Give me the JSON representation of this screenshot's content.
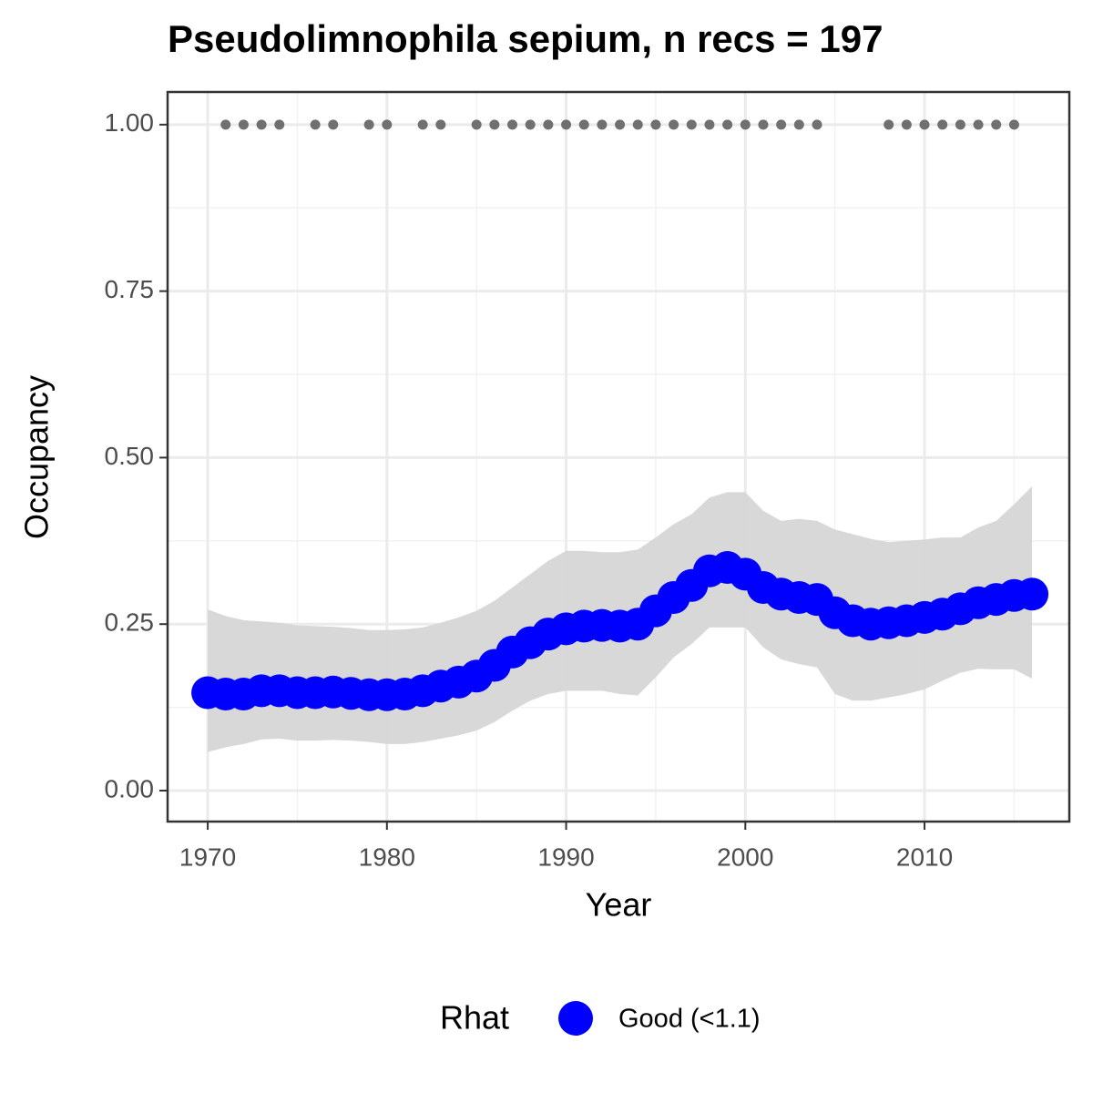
{
  "chart_data": {
    "type": "line",
    "title": "Pseudolimnophila sepium, n recs = 197",
    "x_label": "Year",
    "y_label": "Occupancy",
    "legend_title": "Rhat",
    "x": [
      1970,
      1971,
      1972,
      1973,
      1974,
      1975,
      1976,
      1977,
      1978,
      1979,
      1980,
      1981,
      1982,
      1983,
      1984,
      1985,
      1986,
      1987,
      1988,
      1989,
      1990,
      1991,
      1992,
      1993,
      1994,
      1995,
      1996,
      1997,
      1998,
      1999,
      2000,
      2001,
      2002,
      2003,
      2004,
      2005,
      2006,
      2007,
      2008,
      2009,
      2010,
      2011,
      2012,
      2013,
      2014,
      2015,
      2016
    ],
    "series": [
      {
        "name": "Good (<1.1)",
        "color": "#0000ff",
        "values": [
          0.147,
          0.145,
          0.145,
          0.15,
          0.15,
          0.147,
          0.147,
          0.148,
          0.146,
          0.144,
          0.144,
          0.145,
          0.15,
          0.157,
          0.163,
          0.172,
          0.188,
          0.208,
          0.222,
          0.235,
          0.243,
          0.247,
          0.248,
          0.247,
          0.25,
          0.27,
          0.29,
          0.308,
          0.33,
          0.335,
          0.325,
          0.305,
          0.295,
          0.29,
          0.287,
          0.267,
          0.255,
          0.25,
          0.252,
          0.255,
          0.26,
          0.265,
          0.273,
          0.282,
          0.287,
          0.293,
          0.295
        ],
        "upper": [
          0.272,
          0.262,
          0.256,
          0.254,
          0.252,
          0.248,
          0.247,
          0.246,
          0.244,
          0.241,
          0.241,
          0.242,
          0.245,
          0.252,
          0.26,
          0.27,
          0.285,
          0.305,
          0.325,
          0.345,
          0.36,
          0.36,
          0.358,
          0.358,
          0.362,
          0.38,
          0.4,
          0.415,
          0.44,
          0.448,
          0.448,
          0.42,
          0.405,
          0.408,
          0.405,
          0.392,
          0.385,
          0.378,
          0.373,
          0.375,
          0.377,
          0.38,
          0.38,
          0.395,
          0.405,
          0.43,
          0.457
        ],
        "lower": [
          0.058,
          0.065,
          0.07,
          0.077,
          0.078,
          0.075,
          0.075,
          0.076,
          0.075,
          0.073,
          0.07,
          0.07,
          0.073,
          0.078,
          0.083,
          0.09,
          0.103,
          0.12,
          0.135,
          0.145,
          0.15,
          0.15,
          0.15,
          0.145,
          0.143,
          0.17,
          0.2,
          0.22,
          0.245,
          0.245,
          0.245,
          0.215,
          0.197,
          0.19,
          0.185,
          0.145,
          0.135,
          0.135,
          0.14,
          0.145,
          0.152,
          0.165,
          0.177,
          0.183,
          0.182,
          0.182,
          0.168
        ]
      }
    ],
    "band_color": "#d6d6d6",
    "records": {
      "color": "#707070",
      "x": [
        1971,
        1972,
        1973,
        1974,
        1976,
        1977,
        1979,
        1980,
        1982,
        1983,
        1985,
        1986,
        1987,
        1988,
        1989,
        1990,
        1991,
        1992,
        1993,
        1994,
        1995,
        1996,
        1997,
        1998,
        1999,
        2000,
        2001,
        2002,
        2003,
        2004,
        2008,
        2009,
        2010,
        2011,
        2012,
        2013,
        2014,
        2015
      ],
      "values": [
        1,
        1,
        1,
        1,
        1,
        1,
        1,
        1,
        1,
        1,
        1,
        1,
        1,
        1,
        1,
        1,
        1,
        1,
        1,
        1,
        1,
        1,
        1,
        1,
        1,
        1,
        1,
        1,
        1,
        1,
        1,
        1,
        1,
        1,
        1,
        1,
        1,
        1
      ]
    },
    "xlim": [
      1967.76,
      2018.08
    ],
    "ylim": [
      -0.0465,
      1.049
    ],
    "xticks": [
      1970,
      1980,
      1990,
      2000,
      2010
    ],
    "yticks": [
      {
        "value": 0,
        "label": "0.00"
      },
      {
        "value": 0.25,
        "label": "0.25"
      },
      {
        "value": 0.5,
        "label": "0.50"
      },
      {
        "value": 0.75,
        "label": "0.75"
      },
      {
        "value": 1,
        "label": "1.00"
      }
    ],
    "xminor": [
      1975,
      1985,
      1995,
      2005,
      2015
    ],
    "yminor": [
      0.125,
      0.375,
      0.625,
      0.875
    ],
    "grid": true
  }
}
